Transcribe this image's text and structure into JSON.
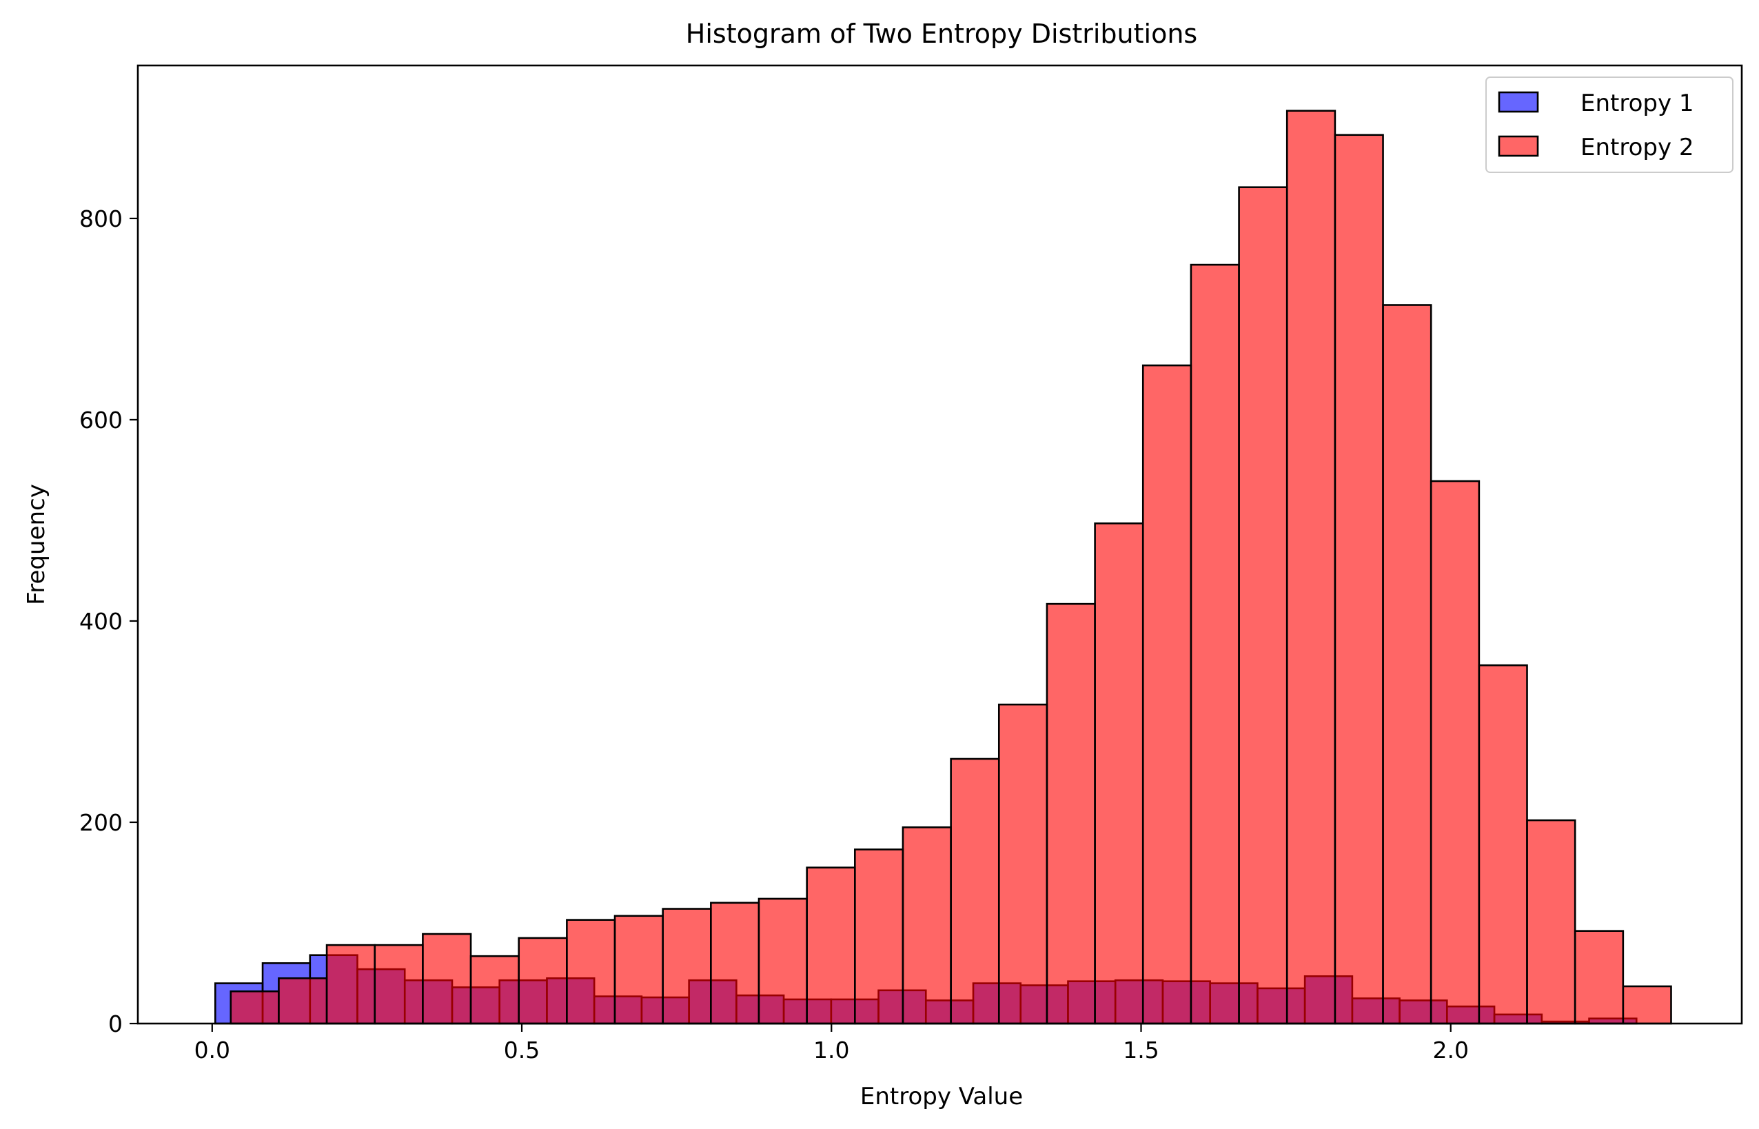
{
  "chart_data": {
    "type": "bar",
    "title": "Histogram of Two Entropy Distributions",
    "xlabel": "Entropy Value",
    "ylabel": "Frequency",
    "xlim": [
      -0.12,
      2.47
    ],
    "ylim": [
      0,
      952
    ],
    "xticks": [
      0.0,
      0.5,
      1.0,
      1.5,
      2.0
    ],
    "xtick_labels": [
      "0.0",
      "0.5",
      "1.0",
      "1.5",
      "2.0"
    ],
    "yticks": [
      0,
      200,
      400,
      600,
      800
    ],
    "ytick_labels": [
      "0",
      "200",
      "400",
      "600",
      "800"
    ],
    "grid": false,
    "legend_position": "top-right",
    "series": [
      {
        "name": "Entropy 1",
        "color": "#0000ff",
        "opacity": 0.6,
        "bin_start": 0.005,
        "bin_width": 0.0765,
        "values": [
          40,
          60,
          68,
          54,
          43,
          36,
          43,
          45,
          27,
          26,
          43,
          28,
          24,
          24,
          33,
          23,
          40,
          38,
          42,
          43,
          42,
          40,
          35,
          47,
          25,
          23,
          17,
          9,
          2,
          5
        ]
      },
      {
        "name": "Entropy 2",
        "color": "#ff0000",
        "opacity": 0.6,
        "bin_start": 0.03,
        "bin_width": 0.07753,
        "values": [
          32,
          45,
          78,
          78,
          89,
          67,
          85,
          103,
          107,
          114,
          120,
          124,
          155,
          173,
          195,
          263,
          317,
          417,
          497,
          654,
          754,
          831,
          907,
          883,
          714,
          539,
          356,
          202,
          92,
          37
        ]
      }
    ]
  }
}
